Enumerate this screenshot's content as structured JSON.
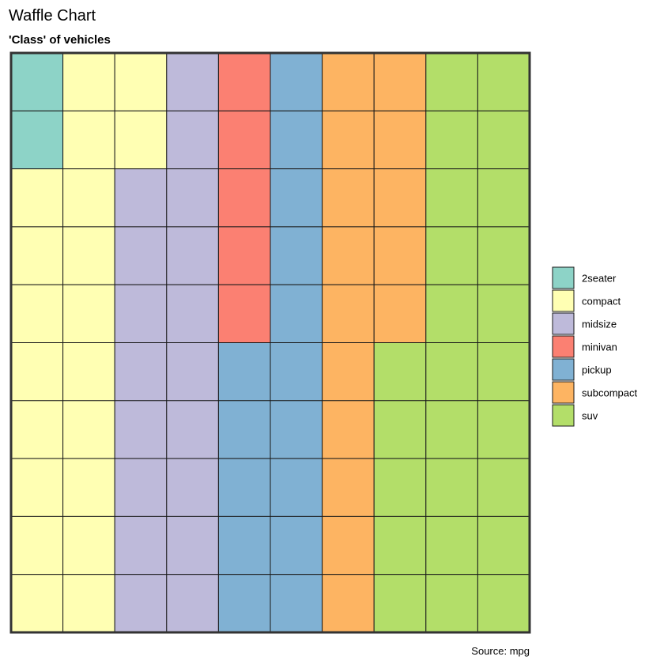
{
  "chart_data": {
    "type": "waffle",
    "title": "Waffle Chart",
    "subtitle": "'Class' of vehicles",
    "caption": "Source: mpg",
    "grid": {
      "rows": 10,
      "cols": 10
    },
    "order": "column-major, top-to-bottom",
    "legend_position": "right",
    "categories": [
      {
        "name": "2seater",
        "count": 2,
        "color": "#8DD3C7"
      },
      {
        "name": "compact",
        "count": 20,
        "color": "#FFFFB3"
      },
      {
        "name": "midsize",
        "count": 18,
        "color": "#BEBADA"
      },
      {
        "name": "minivan",
        "count": 5,
        "color": "#FB8072"
      },
      {
        "name": "pickup",
        "count": 15,
        "color": "#80B1D3"
      },
      {
        "name": "subcompact",
        "count": 15,
        "color": "#FDB462"
      },
      {
        "name": "suv",
        "count": 25,
        "color": "#B3DE69"
      }
    ]
  }
}
